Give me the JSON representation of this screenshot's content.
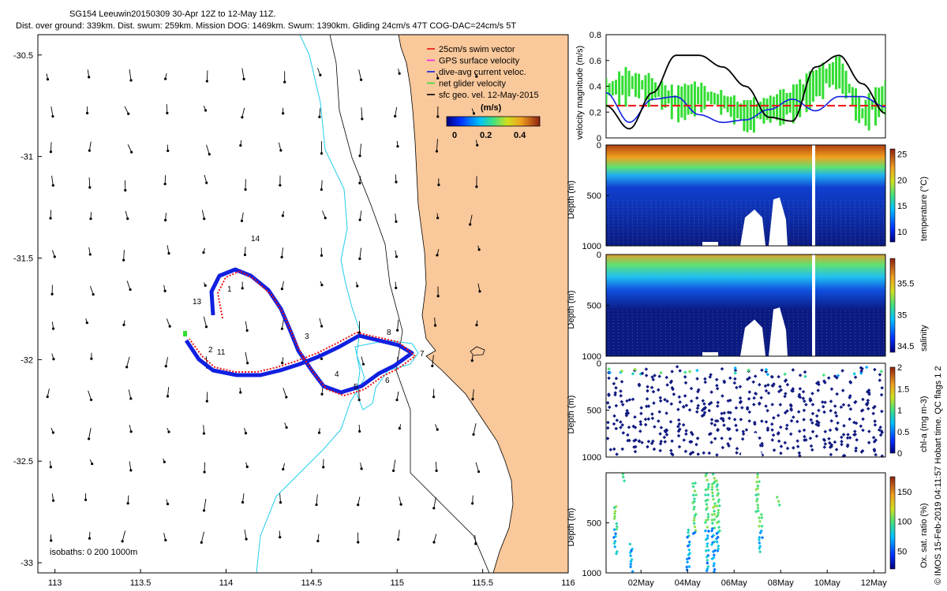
{
  "figure": {
    "title_line1": "SG154 Leeuwin20150309 30-Apr 12Z to 12-May 11Z.",
    "title_line2": "Dist. over ground: 339km. Dist. swum: 259km. Mission DOG: 1469km. Swum: 1390km. Gliding 24cm/s 47T COG-DAC=24cm/s 5T",
    "side_note": "© IMOS 15-Feb-2019 04:11:57 Hobart time. QC flags 1  2",
    "colors": {
      "land": "#f9c89b",
      "track_blue": "#1020e0",
      "swim_red": "#ee1111",
      "isobath": "#22ccee",
      "net_green": "#33dd33"
    }
  },
  "map": {
    "xlim": [
      112.9,
      116.0
    ],
    "ylim": [
      -33.05,
      -30.4
    ],
    "xticks": [
      "113",
      "113.5",
      "114",
      "114.5",
      "115",
      "115.5",
      "116"
    ],
    "yticks": [
      "-30.5",
      "-31",
      "-31.5",
      "-32",
      "-32.5",
      "-33"
    ],
    "isobath_label": "isobaths: 0   200  1000m",
    "legend": [
      {
        "label": "25cm/s swim vector",
        "color": "#ee1111"
      },
      {
        "label": "GPS surface velocity",
        "color": "#ee22ee"
      },
      {
        "label": "dive-avg current veloc.",
        "color": "#1020e0"
      },
      {
        "label": "net glider velocity",
        "color": "#33dd33"
      },
      {
        "label": "sfc geo. vel. 12-May-2015",
        "color": "#000000"
      }
    ],
    "colorbar_unit": "(m/s)",
    "colorbar_ticks": [
      "0",
      "0.2",
      "0.4"
    ],
    "day_labels": [
      "1",
      "2",
      "3",
      "4",
      "5",
      "6",
      "7",
      "8",
      "11",
      "13",
      "14"
    ]
  },
  "chart_data": [
    {
      "type": "line",
      "title": "",
      "xlabel": "",
      "ylabel": "velocity magnitude (m/s)",
      "ylim": [
        0,
        0.8
      ],
      "yticks": [
        "0",
        "0.2",
        "0.4",
        "0.6",
        "0.8"
      ],
      "x_days": [
        0,
        1,
        2,
        3,
        4,
        5,
        6,
        7,
        8,
        9,
        10,
        11,
        12
      ],
      "series": [
        {
          "name": "sfc geo. velocity",
          "color": "#000000",
          "values": [
            0.25,
            0.07,
            0.35,
            0.64,
            0.64,
            0.55,
            0.4,
            0.16,
            0.13,
            0.55,
            0.64,
            0.42,
            0.19
          ]
        },
        {
          "name": "dive-avg current",
          "color": "#1020e0",
          "values": [
            0.35,
            0.12,
            0.3,
            0.32,
            0.18,
            0.12,
            0.14,
            0.22,
            0.3,
            0.21,
            0.32,
            0.32,
            0.24
          ]
        },
        {
          "name": "25cm/s swim",
          "color": "#ee1111",
          "values": [
            0.25,
            0.25,
            0.25,
            0.25,
            0.25,
            0.25,
            0.25,
            0.25,
            0.25,
            0.25,
            0.25,
            0.25,
            0.25
          ]
        },
        {
          "name": "net glider velocity",
          "color": "#33dd33",
          "values": [
            0.38,
            0.45,
            0.4,
            0.3,
            0.35,
            0.3,
            0.2,
            0.25,
            0.3,
            0.45,
            0.55,
            0.2,
            0.35
          ]
        }
      ]
    },
    {
      "type": "heatmap",
      "ylabel": "Depth (m)",
      "clabel": "temperature (°C)",
      "yticks": [
        "0",
        "500",
        "1000"
      ],
      "cticks": [
        "10",
        "15",
        "20",
        "25"
      ],
      "crange": [
        8,
        26
      ]
    },
    {
      "type": "heatmap",
      "ylabel": "Depth (m)",
      "clabel": "salinity",
      "yticks": [
        "0",
        "500",
        "1000"
      ],
      "cticks": [
        "34.5",
        "35",
        "35.5"
      ],
      "crange": [
        34.4,
        35.9
      ]
    },
    {
      "type": "scatter",
      "ylabel": "Depth (m)",
      "clabel": "chl-a (mg m-3)",
      "yticks": [
        "0",
        "500",
        "1000"
      ],
      "cticks": [
        "0",
        "0.5",
        "1",
        "1.5",
        "2"
      ],
      "crange": [
        0,
        2
      ]
    },
    {
      "type": "scatter",
      "ylabel": "Depth (m)",
      "clabel": "Ox. sat. ratio (%)",
      "yticks": [
        "500",
        "1000"
      ],
      "cticks": [
        "50",
        "100",
        "150"
      ],
      "crange": [
        20,
        175
      ]
    }
  ],
  "time_axis": {
    "ticks": [
      "02May",
      "04May",
      "06May",
      "08May",
      "10May",
      "12May"
    ]
  }
}
